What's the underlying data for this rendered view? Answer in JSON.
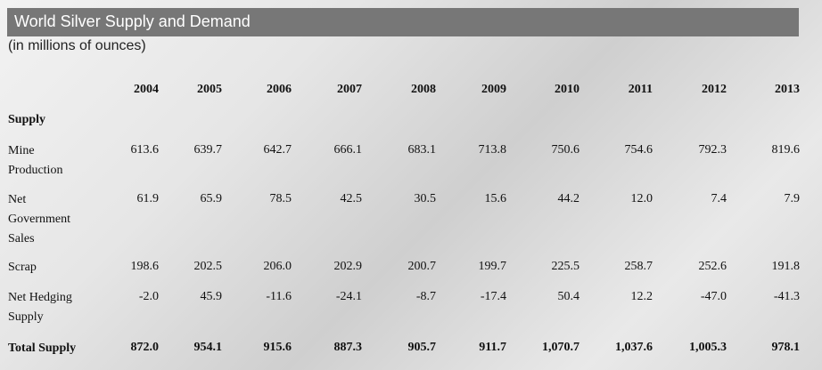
{
  "title": "World Silver Supply and Demand",
  "subtitle": "(in millions of ounces)",
  "years": [
    "2004",
    "2005",
    "2006",
    "2007",
    "2008",
    "2009",
    "2010",
    "2011",
    "2012",
    "2013"
  ],
  "section_label": "Supply",
  "rows": [
    {
      "label_lines": [
        "Mine",
        "Production"
      ],
      "values": [
        "613.6",
        "639.7",
        "642.7",
        "666.1",
        "683.1",
        "713.8",
        "750.6",
        "754.6",
        "792.3",
        "819.6"
      ],
      "bold": false
    },
    {
      "label_lines": [
        "Net",
        "Government",
        "Sales"
      ],
      "values": [
        "61.9",
        "65.9",
        "78.5",
        "42.5",
        "30.5",
        "15.6",
        "44.2",
        "12.0",
        "7.4",
        "7.9"
      ],
      "bold": false
    },
    {
      "label_lines": [
        "Scrap"
      ],
      "values": [
        "198.6",
        "202.5",
        "206.0",
        "202.9",
        "200.7",
        "199.7",
        "225.5",
        "258.7",
        "252.6",
        "191.8"
      ],
      "bold": false
    },
    {
      "label_lines": [
        "Net Hedging",
        "Supply"
      ],
      "values": [
        "-2.0",
        "45.9",
        "-11.6",
        "-24.1",
        "-8.7",
        "-17.4",
        "50.4",
        "12.2",
        "-47.0",
        "-41.3"
      ],
      "bold": false
    },
    {
      "label_lines": [
        "Total Supply"
      ],
      "values": [
        "872.0",
        "954.1",
        "915.6",
        "887.3",
        "905.7",
        "911.7",
        "1,070.7",
        "1,037.6",
        "1,005.3",
        "978.1"
      ],
      "bold": true
    }
  ]
}
